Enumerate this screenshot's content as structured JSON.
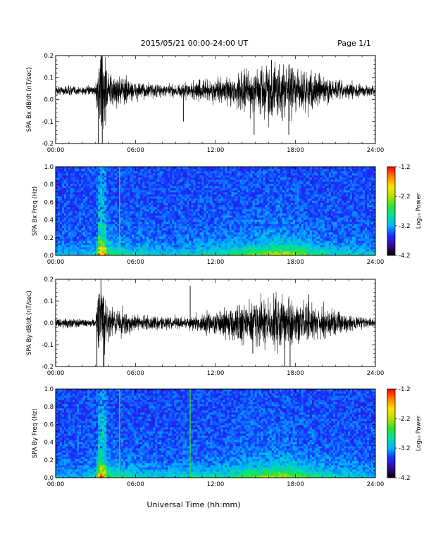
{
  "header": {
    "title": "2015/05/21   00:00-24:00 UT",
    "page_label": "Page 1/1"
  },
  "xlabel": "Universal Time (hh:mm)",
  "colors": {
    "background": "#ffffff",
    "trace": "#000000",
    "spectrogram_base": "#2a0e6e",
    "green_line": "#37d63a"
  },
  "colorbar": {
    "label": "Log₁₀ Power",
    "ticks": [
      "-1.2",
      "-2.2",
      "-3.2",
      "-4.2"
    ],
    "range": [
      -4.2,
      -1.2
    ],
    "colormap": [
      "#000000",
      "#3a0a8a",
      "#1a2cff",
      "#00b4ff",
      "#00e0a0",
      "#30e030",
      "#b8e000",
      "#ffe000",
      "#ff8000",
      "#ff0000"
    ]
  },
  "chart_data": [
    {
      "type": "line",
      "panel": "SPA Bx dB/dt",
      "ylabel": "SPA Bx dB/dt (nT/sec)",
      "xlim": [
        0,
        24
      ],
      "ylim": [
        -0.2,
        0.2
      ],
      "x_ticks": [
        "00:00",
        "06:00",
        "12:00",
        "18:00",
        "24:00"
      ],
      "y_ticks": [
        "0.2",
        "0.1",
        "0.0",
        "-0.1",
        "-0.2"
      ],
      "baseline": 0.04,
      "envelope": {
        "hours": [
          0,
          1,
          2,
          3,
          3.3,
          3.6,
          4,
          5,
          6,
          7,
          8,
          9,
          10,
          11,
          12,
          13,
          14,
          15,
          16,
          17,
          18,
          19,
          20,
          21,
          22,
          23,
          24
        ],
        "amplitude": [
          0.02,
          0.025,
          0.02,
          0.02,
          0.2,
          0.2,
          0.08,
          0.07,
          0.04,
          0.035,
          0.03,
          0.03,
          0.04,
          0.05,
          0.05,
          0.06,
          0.09,
          0.11,
          0.13,
          0.13,
          0.11,
          0.09,
          0.07,
          0.05,
          0.04,
          0.03,
          0.02
        ]
      },
      "spikes": [
        {
          "hour": 3.2,
          "value": -0.2
        },
        {
          "hour": 3.4,
          "value": 0.2
        },
        {
          "hour": 3.5,
          "value": -0.2
        },
        {
          "hour": 14.9,
          "value": -0.16
        },
        {
          "hour": 16.2,
          "value": 0.18
        },
        {
          "hour": 17.5,
          "value": -0.16
        },
        {
          "hour": 9.6,
          "value": -0.1
        },
        {
          "hour": 19.5,
          "value": 0.12
        }
      ]
    },
    {
      "type": "heatmap",
      "panel": "SPA Bx Freq",
      "ylabel": "SPA Bx Freq (Hz)",
      "xlim": [
        0,
        24
      ],
      "ylim": [
        0.0,
        1.0
      ],
      "x_ticks": [
        "00:00",
        "06:00",
        "12:00",
        "18:00",
        "24:00"
      ],
      "y_ticks": [
        "1.0",
        "0.8",
        "0.6",
        "0.4",
        "0.2",
        "0.0"
      ],
      "zlabel": "Log₁₀ Power",
      "zlim": [
        -4.2,
        -1.2
      ],
      "activity": {
        "hours": [
          0,
          1,
          2,
          3,
          3.3,
          3.6,
          4,
          5,
          6,
          7,
          8,
          9,
          10,
          11,
          12,
          13,
          14,
          15,
          16,
          17,
          18,
          19,
          20,
          21,
          22,
          23,
          24
        ],
        "level": [
          0.2,
          0.2,
          0.2,
          0.3,
          1.0,
          0.9,
          0.5,
          0.4,
          0.3,
          0.3,
          0.25,
          0.25,
          0.3,
          0.35,
          0.35,
          0.4,
          0.5,
          0.6,
          0.7,
          0.75,
          0.65,
          0.5,
          0.4,
          0.3,
          0.3,
          0.25,
          0.2
        ]
      },
      "vertical_lines": [
        {
          "hour": 4.8,
          "color": "#37d63a"
        }
      ]
    },
    {
      "type": "line",
      "panel": "SPA By dB/dt",
      "ylabel": "SPA By dB/dt (nT/sec)",
      "xlim": [
        0,
        24
      ],
      "ylim": [
        -0.2,
        0.2
      ],
      "x_ticks": [
        "00:00",
        "06:00",
        "12:00",
        "18:00",
        "24:00"
      ],
      "y_ticks": [
        "0.2",
        "0.1",
        "0.0",
        "-0.1",
        "-0.2"
      ],
      "baseline": 0.0,
      "envelope": {
        "hours": [
          0,
          1,
          2,
          3,
          3.3,
          3.6,
          4,
          5,
          6,
          7,
          8,
          9,
          10,
          11,
          12,
          13,
          14,
          15,
          16,
          17,
          18,
          19,
          20,
          21,
          22,
          23,
          24
        ],
        "amplitude": [
          0.02,
          0.025,
          0.02,
          0.02,
          0.2,
          0.2,
          0.08,
          0.06,
          0.04,
          0.035,
          0.03,
          0.03,
          0.03,
          0.045,
          0.06,
          0.07,
          0.09,
          0.11,
          0.12,
          0.12,
          0.1,
          0.09,
          0.08,
          0.06,
          0.04,
          0.03,
          0.02
        ]
      },
      "spikes": [
        {
          "hour": 3.1,
          "value": -0.2
        },
        {
          "hour": 3.4,
          "value": 0.2
        },
        {
          "hour": 3.6,
          "value": -0.2
        },
        {
          "hour": 10.1,
          "value": 0.17
        },
        {
          "hour": 17.2,
          "value": -0.2
        },
        {
          "hour": 17.6,
          "value": -0.2
        },
        {
          "hour": 14.8,
          "value": -0.14
        },
        {
          "hour": 19.0,
          "value": 0.13
        }
      ]
    },
    {
      "type": "heatmap",
      "panel": "SPA By Freq",
      "ylabel": "SPA By Freq (Hz)",
      "xlim": [
        0,
        24
      ],
      "ylim": [
        0.0,
        1.0
      ],
      "x_ticks": [
        "00:00",
        "06:00",
        "12:00",
        "18:00",
        "24:00"
      ],
      "y_ticks": [
        "1.0",
        "0.8",
        "0.6",
        "0.4",
        "0.2",
        "0.0"
      ],
      "zlabel": "Log₁₀ Power",
      "zlim": [
        -4.2,
        -1.2
      ],
      "activity": {
        "hours": [
          0,
          1,
          2,
          3,
          3.3,
          3.6,
          4,
          5,
          6,
          7,
          8,
          9,
          10,
          11,
          12,
          13,
          14,
          15,
          16,
          17,
          18,
          19,
          20,
          21,
          22,
          23,
          24
        ],
        "level": [
          0.2,
          0.2,
          0.2,
          0.3,
          1.0,
          0.9,
          0.5,
          0.4,
          0.3,
          0.3,
          0.25,
          0.25,
          0.3,
          0.35,
          0.35,
          0.4,
          0.5,
          0.6,
          0.7,
          0.75,
          0.65,
          0.5,
          0.4,
          0.3,
          0.3,
          0.25,
          0.2
        ]
      },
      "vertical_lines": [
        {
          "hour": 4.8,
          "color": "#37d63a"
        },
        {
          "hour": 10.1,
          "color": "#37d63a"
        }
      ]
    }
  ]
}
